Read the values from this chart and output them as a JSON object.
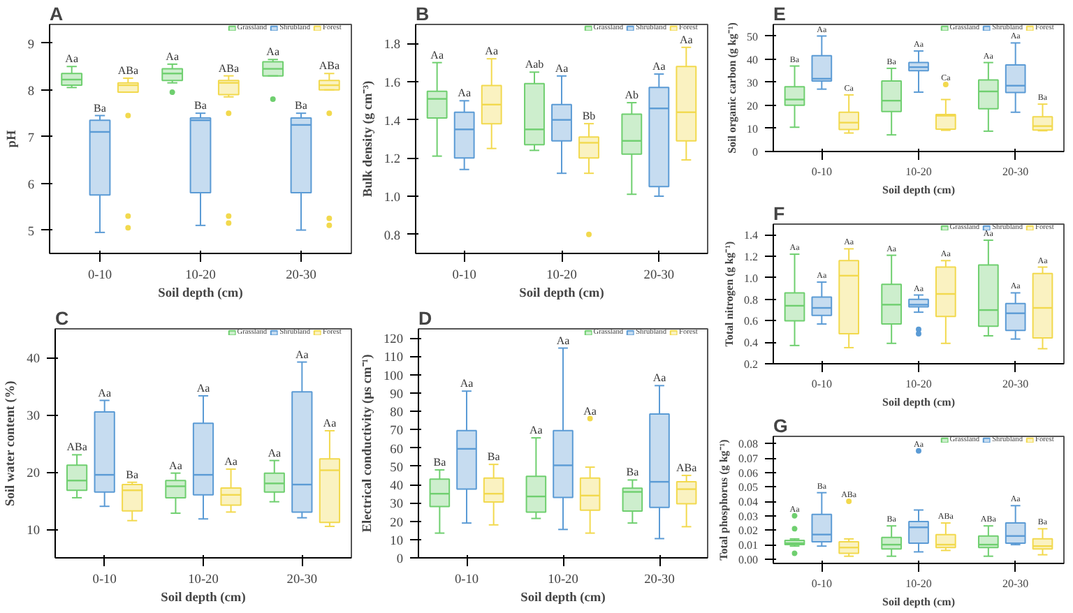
{
  "chart_data": [
    {
      "type": "box",
      "title": "A",
      "xlabel": "Soil depth (cm)",
      "ylabel": "pH",
      "categories": [
        "0-10",
        "10-20",
        "20-30"
      ],
      "ylim": [
        4.5,
        9.4
      ],
      "yticks": [
        5,
        6,
        7,
        8,
        9
      ],
      "legend": "top right",
      "series": [
        {
          "name": "Grassland",
          "color": "#6fcf6f",
          "boxes": [
            {
              "low": 8.05,
              "q1": 8.1,
              "median": 8.22,
              "q3": 8.35,
              "high": 8.5
            },
            {
              "low": 8.15,
              "q1": 8.2,
              "median": 8.35,
              "q3": 8.45,
              "high": 8.55,
              "outliers": [
                7.95
              ]
            },
            {
              "low": 8.3,
              "q1": 8.3,
              "median": 8.45,
              "q3": 8.6,
              "high": 8.65,
              "outliers": [
                7.8
              ]
            }
          ]
        },
        {
          "name": "Shrubland",
          "color": "#5b9bd5",
          "boxes": [
            {
              "low": 4.95,
              "q1": 5.75,
              "median": 7.1,
              "q3": 7.35,
              "high": 7.45
            },
            {
              "low": 5.1,
              "q1": 5.8,
              "median": 7.35,
              "q3": 7.4,
              "high": 7.5
            },
            {
              "low": 5.0,
              "q1": 5.8,
              "median": 7.25,
              "q3": 7.4,
              "high": 7.5
            }
          ]
        },
        {
          "name": "Forest",
          "color": "#f2d94e",
          "boxes": [
            {
              "low": 7.95,
              "q1": 7.95,
              "median": 8.1,
              "q3": 8.15,
              "high": 8.25,
              "outliers": [
                7.45,
                5.3,
                5.05
              ]
            },
            {
              "low": 7.85,
              "q1": 7.9,
              "median": 8.15,
              "q3": 8.2,
              "high": 8.3,
              "outliers": [
                7.5,
                5.3,
                5.15
              ]
            },
            {
              "low": 8.0,
              "q1": 8.0,
              "median": 8.1,
              "q3": 8.2,
              "high": 8.35,
              "outliers": [
                7.5,
                5.25,
                5.1
              ]
            }
          ]
        }
      ],
      "annotations": [
        "Aa",
        "Ba",
        "ABa",
        "Aa",
        "Ba",
        "ABa",
        "Aa",
        "Ba",
        "ABa"
      ]
    },
    {
      "type": "box",
      "title": "B",
      "xlabel": "Soil depth (cm)",
      "ylabel": "Bulk density (g cm⁻³)",
      "categories": [
        "0-10",
        "10-20",
        "20-30"
      ],
      "ylim": [
        0.7,
        1.9
      ],
      "yticks": [
        {
          "value": 0.8,
          "label": "0.8"
        },
        {
          "value": 1.0,
          "label": "1.0"
        },
        {
          "value": 1.2,
          "label": "1.2"
        },
        {
          "value": 1.4,
          "label": "1.4"
        },
        {
          "value": 1.6,
          "label": "1.6"
        },
        {
          "value": 1.8,
          "label": "1.8"
        }
      ],
      "legend": "top right",
      "series": [
        {
          "name": "Grassland",
          "color": "#6fcf6f",
          "boxes": [
            {
              "low": 1.21,
              "q1": 1.41,
              "median": 1.51,
              "q3": 1.55,
              "high": 1.7
            },
            {
              "low": 1.24,
              "q1": 1.27,
              "median": 1.35,
              "q3": 1.59,
              "high": 1.65
            },
            {
              "low": 1.01,
              "q1": 1.22,
              "median": 1.29,
              "q3": 1.43,
              "high": 1.49
            }
          ]
        },
        {
          "name": "Shrubland",
          "color": "#5b9bd5",
          "boxes": [
            {
              "low": 1.14,
              "q1": 1.2,
              "median": 1.35,
              "q3": 1.44,
              "high": 1.5
            },
            {
              "low": 1.12,
              "q1": 1.29,
              "median": 1.4,
              "q3": 1.48,
              "high": 1.63
            },
            {
              "low": 1.0,
              "q1": 1.05,
              "median": 1.46,
              "q3": 1.57,
              "high": 1.64
            }
          ]
        },
        {
          "name": "Forest",
          "color": "#f2d94e",
          "boxes": [
            {
              "low": 1.25,
              "q1": 1.38,
              "median": 1.48,
              "q3": 1.58,
              "high": 1.72
            },
            {
              "low": 1.12,
              "q1": 1.2,
              "median": 1.28,
              "q3": 1.31,
              "high": 1.38,
              "outliers": [
                0.8
              ]
            },
            {
              "low": 1.19,
              "q1": 1.29,
              "median": 1.44,
              "q3": 1.68,
              "high": 1.78
            }
          ]
        }
      ],
      "annotations": [
        "Aa",
        "Aa",
        "Aa",
        "Aab",
        "Aa",
        "Bb",
        "Ab",
        "Aa",
        "Aa"
      ]
    },
    {
      "type": "box",
      "title": "C",
      "xlabel": "Soil depth (cm)",
      "ylabel": "Soil water content (%)",
      "categories": [
        "0-10",
        "10-20",
        "20-30"
      ],
      "ylim": [
        5,
        45
      ],
      "yticks": [
        10,
        20,
        30,
        40
      ],
      "legend": "top right",
      "series": [
        {
          "name": "Grassland",
          "color": "#6fcf6f",
          "boxes": [
            {
              "low": 15.5,
              "q1": 16.8,
              "median": 18.5,
              "q3": 21.2,
              "high": 23
            },
            {
              "low": 12.8,
              "q1": 15.5,
              "median": 17.5,
              "q3": 18.5,
              "high": 19.8
            },
            {
              "low": 14.8,
              "q1": 16.5,
              "median": 18,
              "q3": 19.8,
              "high": 22
            }
          ]
        },
        {
          "name": "Shrubland",
          "color": "#5b9bd5",
          "boxes": [
            {
              "low": 14,
              "q1": 16.5,
              "median": 19.5,
              "q3": 30.5,
              "high": 32.5
            },
            {
              "low": 11.8,
              "q1": 16,
              "median": 19.5,
              "q3": 28.5,
              "high": 33.3
            },
            {
              "low": 12,
              "q1": 13,
              "median": 17.8,
              "q3": 34,
              "high": 39.2
            }
          ]
        },
        {
          "name": "Forest",
          "color": "#f2d94e",
          "boxes": [
            {
              "low": 11.5,
              "q1": 13.2,
              "median": 16.8,
              "q3": 17.8,
              "high": 18.2
            },
            {
              "low": 13,
              "q1": 14.2,
              "median": 16,
              "q3": 17.2,
              "high": 20.5
            },
            {
              "low": 10.5,
              "q1": 11.2,
              "median": 20.3,
              "q3": 22.3,
              "high": 27.2
            }
          ]
        }
      ],
      "annotations": [
        "ABa",
        "Aa",
        "Ba",
        "Aa",
        "Aa",
        "Aa",
        "Aa",
        "Aa",
        "Aa"
      ]
    },
    {
      "type": "box",
      "title": "D",
      "xlabel": "Soil depth (cm)",
      "ylabel": "Electrical conductivity (μs cm⁻¹)",
      "categories": [
        "0-10",
        "10-20",
        "20-30"
      ],
      "ylim": [
        0,
        125
      ],
      "yticks": [
        0,
        10,
        20,
        30,
        40,
        50,
        60,
        70,
        80,
        90,
        100,
        110,
        120
      ],
      "legend": "top right",
      "series": [
        {
          "name": "Grassland",
          "color": "#6fcf6f",
          "boxes": [
            {
              "low": 13.5,
              "q1": 28,
              "median": 35,
              "q3": 43,
              "high": 48
            },
            {
              "low": 21.5,
              "q1": 25,
              "median": 33.5,
              "q3": 44.5,
              "high": 65.5
            },
            {
              "low": 19,
              "q1": 25.5,
              "median": 36,
              "q3": 38,
              "high": 42.5
            }
          ]
        },
        {
          "name": "Shrubland",
          "color": "#5b9bd5",
          "boxes": [
            {
              "low": 19,
              "q1": 37.5,
              "median": 59.5,
              "q3": 69.5,
              "high": 91
            },
            {
              "low": 15.5,
              "q1": 33,
              "median": 50.5,
              "q3": 69.5,
              "high": 114.5
            },
            {
              "low": 10.5,
              "q1": 27.5,
              "median": 41.5,
              "q3": 78.5,
              "high": 94
            }
          ]
        },
        {
          "name": "Forest",
          "color": "#f2d94e",
          "boxes": [
            {
              "low": 18,
              "q1": 30.5,
              "median": 35,
              "q3": 43.5,
              "high": 51
            },
            {
              "low": 13.5,
              "q1": 26,
              "median": 34,
              "q3": 43.5,
              "high": 49.5,
              "outliers": [
                76
              ]
            },
            {
              "low": 17,
              "q1": 29.5,
              "median": 37.5,
              "q3": 41.5,
              "high": 45
            }
          ]
        }
      ],
      "annotations": [
        "Ba",
        "Aa",
        "Ba",
        "Aa",
        "Aa",
        "Aa",
        "Ba",
        "Aa",
        "ABa"
      ]
    },
    {
      "type": "box",
      "title": "E",
      "xlabel": "Soil depth (cm)",
      "ylabel": "Soil organic carbon (g kg⁻¹)",
      "categories": [
        "0-10",
        "10-20",
        "20-30"
      ],
      "ylim": [
        0,
        55
      ],
      "yticks": [
        0,
        10,
        20,
        30,
        40,
        50
      ],
      "legend": "top right",
      "series": [
        {
          "name": "Grassland",
          "color": "#6fcf6f",
          "boxes": [
            {
              "low": 10.5,
              "q1": 20,
              "median": 22.5,
              "q3": 28,
              "high": 37
            },
            {
              "low": 7.2,
              "q1": 17.3,
              "median": 22,
              "q3": 30.5,
              "high": 36
            },
            {
              "low": 8.8,
              "q1": 18.5,
              "median": 26,
              "q3": 31,
              "high": 38.5
            }
          ]
        },
        {
          "name": "Shrubland",
          "color": "#5b9bd5",
          "boxes": [
            {
              "low": 27,
              "q1": 30.5,
              "median": 31.5,
              "q3": 41.5,
              "high": 50
            },
            {
              "low": 25.7,
              "q1": 35,
              "median": 36.5,
              "q3": 38.5,
              "high": 43.5
            },
            {
              "low": 17,
              "q1": 25.5,
              "median": 28.5,
              "q3": 37.5,
              "high": 47
            }
          ]
        },
        {
          "name": "Forest",
          "color": "#f2d94e",
          "boxes": [
            {
              "low": 8,
              "q1": 9.5,
              "median": 12.5,
              "q3": 17,
              "high": 24.5
            },
            {
              "low": 9.2,
              "q1": 9.7,
              "median": 15.5,
              "q3": 16,
              "high": 22.5,
              "outliers": [
                29
              ]
            },
            {
              "low": 9,
              "q1": 9.3,
              "median": 11,
              "q3": 15,
              "high": 20.5
            }
          ]
        }
      ],
      "annotations": [
        "Ba",
        "Aa",
        "Ca",
        "Ba",
        "Aa",
        "Ca",
        "Aa",
        "Aa",
        "Ba"
      ]
    },
    {
      "type": "box",
      "title": "F",
      "xlabel": "Soil depth (cm)",
      "ylabel": "Total nitrogen (g kg⁻¹)",
      "categories": [
        "0-10",
        "10-20",
        "20-30"
      ],
      "ylim": [
        0.2,
        1.5
      ],
      "yticks": [
        {
          "value": 0.2,
          "label": "0.2"
        },
        {
          "value": 0.4,
          "label": "0.4"
        },
        {
          "value": 0.6,
          "label": "0.6"
        },
        {
          "value": 0.8,
          "label": "0.8"
        },
        {
          "value": 1.0,
          "label": "1.0"
        },
        {
          "value": 1.2,
          "label": "1.2"
        },
        {
          "value": 1.4,
          "label": "1.4"
        }
      ],
      "legend": "top right",
      "series": [
        {
          "name": "Grassland",
          "color": "#6fcf6f",
          "boxes": [
            {
              "low": 0.37,
              "q1": 0.6,
              "median": 0.74,
              "q3": 0.86,
              "high": 1.22
            },
            {
              "low": 0.39,
              "q1": 0.57,
              "median": 0.75,
              "q3": 0.94,
              "high": 1.21
            },
            {
              "low": 0.46,
              "q1": 0.55,
              "median": 0.7,
              "q3": 1.12,
              "high": 1.35
            }
          ]
        },
        {
          "name": "Shrubland",
          "color": "#5b9bd5",
          "boxes": [
            {
              "low": 0.57,
              "q1": 0.65,
              "median": 0.72,
              "q3": 0.82,
              "high": 0.96
            },
            {
              "low": 0.68,
              "q1": 0.73,
              "median": 0.75,
              "q3": 0.8,
              "high": 0.84,
              "outliers": [
                0.52,
                0.48
              ]
            },
            {
              "low": 0.43,
              "q1": 0.51,
              "median": 0.67,
              "q3": 0.76,
              "high": 0.86
            }
          ]
        },
        {
          "name": "Forest",
          "color": "#f2d94e",
          "boxes": [
            {
              "low": 0.35,
              "q1": 0.48,
              "median": 1.02,
              "q3": 1.16,
              "high": 1.27
            },
            {
              "low": 0.39,
              "q1": 0.64,
              "median": 0.85,
              "q3": 1.1,
              "high": 1.16
            },
            {
              "low": 0.34,
              "q1": 0.44,
              "median": 0.72,
              "q3": 1.04,
              "high": 1.1
            }
          ]
        }
      ],
      "annotations": [
        "Aa",
        "Aa",
        "Aa",
        "Aa",
        "Aa",
        "Aa",
        "Aa",
        "Aa",
        "Aa"
      ]
    },
    {
      "type": "box",
      "title": "G",
      "xlabel": "Soil depth (cm)",
      "ylabel": "Total phosphorus (g kg⁻¹)",
      "categories": [
        "0-10",
        "10-20",
        "20-30"
      ],
      "ylim": [
        -0.003,
        0.085
      ],
      "yticks": [
        {
          "value": 0.0,
          "label": "0.00"
        },
        {
          "value": 0.01,
          "label": "0.01"
        },
        {
          "value": 0.02,
          "label": "0.02"
        },
        {
          "value": 0.03,
          "label": "0.03"
        },
        {
          "value": 0.04,
          "label": "0.04"
        },
        {
          "value": 0.05,
          "label": "0.05"
        },
        {
          "value": 0.06,
          "label": "0.06"
        },
        {
          "value": 0.07,
          "label": "0.07"
        },
        {
          "value": 0.08,
          "label": "0.08"
        }
      ],
      "legend": "top right",
      "series": [
        {
          "name": "Grassland",
          "color": "#6fcf6f",
          "boxes": [
            {
              "low": 0.009,
              "q1": 0.01,
              "median": 0.011,
              "q3": 0.013,
              "high": 0.014,
              "outliers": [
                0.021,
                0.03,
                0.004
              ]
            },
            {
              "low": 0.002,
              "q1": 0.007,
              "median": 0.01,
              "q3": 0.015,
              "high": 0.023
            },
            {
              "low": 0.002,
              "q1": 0.008,
              "median": 0.01,
              "q3": 0.016,
              "high": 0.023
            }
          ]
        },
        {
          "name": "Shrubland",
          "color": "#5b9bd5",
          "boxes": [
            {
              "low": 0.009,
              "q1": 0.012,
              "median": 0.017,
              "q3": 0.031,
              "high": 0.046
            },
            {
              "low": 0.005,
              "q1": 0.011,
              "median": 0.022,
              "q3": 0.026,
              "high": 0.034,
              "outliers": [
                0.075
              ]
            },
            {
              "low": 0.01,
              "q1": 0.011,
              "median": 0.016,
              "q3": 0.025,
              "high": 0.037
            }
          ]
        },
        {
          "name": "Forest",
          "color": "#f2d94e",
          "boxes": [
            {
              "low": 0.002,
              "q1": 0.004,
              "median": 0.008,
              "q3": 0.012,
              "high": 0.014,
              "outliers": [
                0.04
              ]
            },
            {
              "low": 0.006,
              "q1": 0.008,
              "median": 0.01,
              "q3": 0.017,
              "high": 0.025
            },
            {
              "low": 0.003,
              "q1": 0.007,
              "median": 0.009,
              "q3": 0.014,
              "high": 0.021
            }
          ]
        }
      ],
      "annotations": [
        "Aa",
        "Ba",
        "ABa",
        "Ba",
        "Aa",
        "ABa",
        "ABa",
        "Aa",
        "Ba"
      ]
    }
  ]
}
